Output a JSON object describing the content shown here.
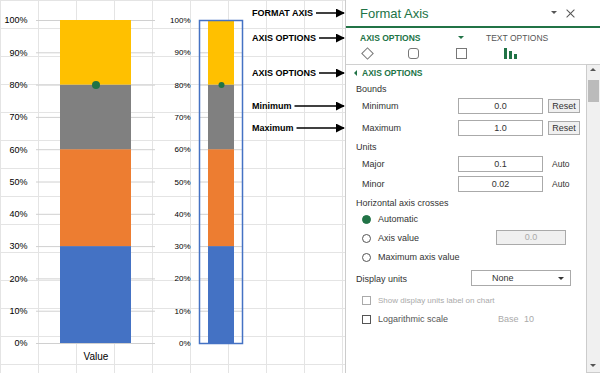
{
  "chart_data": [
    {
      "type": "bar",
      "stacked": true,
      "categories": [
        "Value"
      ],
      "series": [
        {
          "color": "#4472c4",
          "values": [
            0.3
          ]
        },
        {
          "color": "#ed7d31",
          "values": [
            0.3
          ]
        },
        {
          "color": "#808080",
          "values": [
            0.2
          ]
        },
        {
          "color": "#ffc000",
          "values": [
            0.2
          ]
        },
        {
          "type": "scatter",
          "marker": "circle",
          "color": "#217346",
          "values": [
            0.8
          ]
        }
      ],
      "ylim": [
        0,
        1
      ],
      "yticks": [
        {
          "value": 0,
          "label": "0%"
        },
        {
          "value": 0.1,
          "label": "10%"
        },
        {
          "value": 0.2,
          "label": "20%"
        },
        {
          "value": 0.3,
          "label": "30%"
        },
        {
          "value": 0.4,
          "label": "40%"
        },
        {
          "value": 0.5,
          "label": "50%"
        },
        {
          "value": 0.6,
          "label": "60%"
        },
        {
          "value": 0.7,
          "label": "70%"
        },
        {
          "value": 0.8,
          "label": "80%"
        },
        {
          "value": 0.9,
          "label": "90%"
        },
        {
          "value": 1,
          "label": "100%"
        }
      ],
      "grid": true,
      "annotations": [
        "FORMAT AXIS",
        "AXIS OPTIONS",
        "AXIS OPTIONS",
        "Minimum",
        "Maximum"
      ]
    },
    {
      "type": "bar",
      "stacked": true,
      "categories": [
        null
      ],
      "tick_labels": "y",
      "series": [
        {
          "color": "#4472c4",
          "values": [
            0.3
          ]
        },
        {
          "color": "#ed7d31",
          "values": [
            0.3
          ]
        },
        {
          "color": "#808080",
          "values": [
            0.2
          ]
        },
        {
          "color": "#ffc000",
          "values": [
            0.2
          ]
        },
        {
          "type": "scatter",
          "marker": "circle",
          "color": "#217346",
          "values": [
            0.8
          ]
        }
      ],
      "ylim": [
        0,
        1
      ],
      "yticks": [
        {
          "value": 0,
          "label": "0%"
        },
        {
          "value": 0.1,
          "label": "10%"
        },
        {
          "value": 0.2,
          "label": "20%"
        },
        {
          "value": 0.3,
          "label": "30%"
        },
        {
          "value": 0.4,
          "label": "40%"
        },
        {
          "value": 0.5,
          "label": "50%"
        },
        {
          "value": 0.6,
          "label": "60%"
        },
        {
          "value": 0.7,
          "label": "70%"
        },
        {
          "value": 0.8,
          "label": "80%"
        },
        {
          "value": 0.9,
          "label": "90%"
        },
        {
          "value": 1,
          "label": "100%"
        }
      ],
      "grid": true,
      "annotations": [
        "Format Axis",
        "AXIS OPTIONS",
        "TEXT OPTIONS",
        "AXIS OPTIONS",
        "Bounds",
        "Minimum",
        "0.0",
        "Reset",
        "Maximum",
        "1.0",
        "Reset",
        "Units",
        "Major",
        "0.1",
        "Auto",
        "Minor",
        "0.02",
        "Auto",
        "Horizontal axis crosses",
        "Automatic",
        "Axis value",
        "0.0",
        "Maximum axis value",
        "Display units",
        "None",
        "Show display units label on chart",
        "Logarithmic scale",
        "Base",
        "10"
      ]
    }
  ]
}
